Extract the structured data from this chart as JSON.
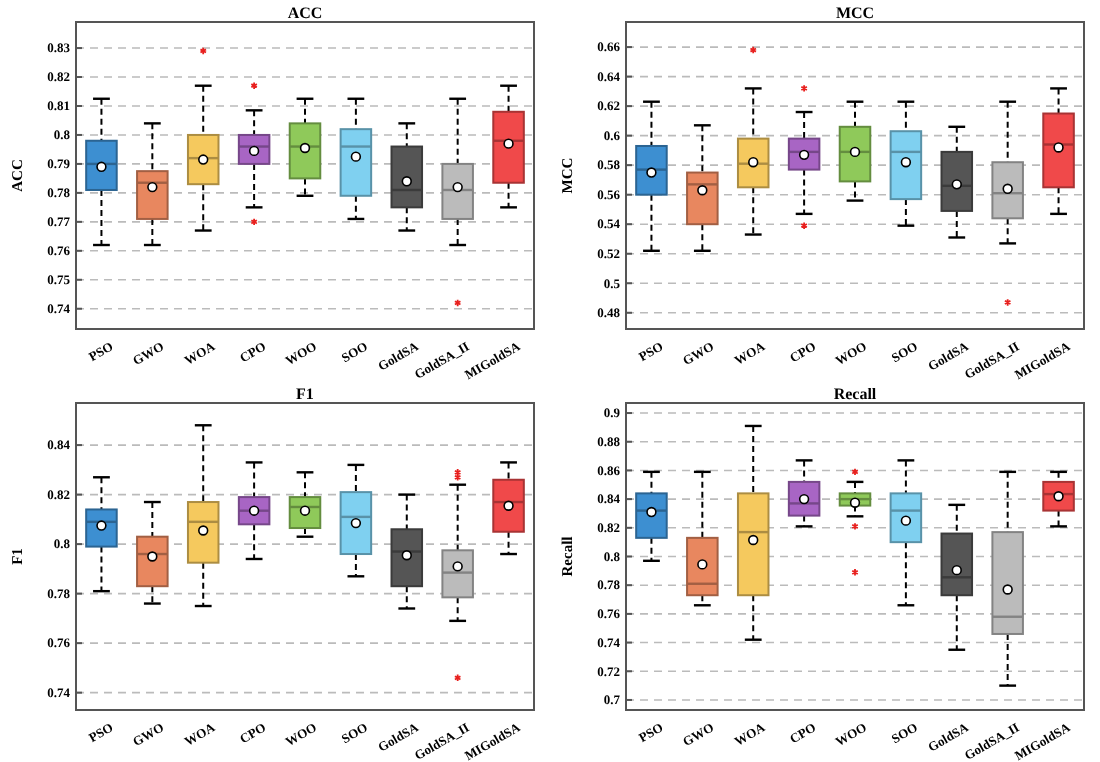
{
  "chart_data": [
    {
      "type": "box",
      "title": "ACC",
      "ylabel": "ACC",
      "categories": [
        "PSO",
        "GWO",
        "WOA",
        "CPO",
        "WOO",
        "SOO",
        "GoldSA",
        "GoldSA_II",
        "MIGoldSA"
      ],
      "colors": [
        "#3d8fd1",
        "#e8875f",
        "#f5c95e",
        "#a865c4",
        "#8fc95a",
        "#7fd0f0",
        "#555555",
        "#bbbbbb",
        "#f0494a"
      ],
      "ylim": [
        0.733,
        0.839
      ],
      "yticks": [
        0.74,
        0.75,
        0.76,
        0.77,
        0.78,
        0.79,
        0.8,
        0.81,
        0.82,
        0.83
      ],
      "grid": "y",
      "boxes": [
        {
          "low": 0.762,
          "q1": 0.781,
          "median": 0.79,
          "q3": 0.798,
          "high": 0.8125,
          "mean": 0.789
        },
        {
          "low": 0.762,
          "q1": 0.771,
          "median": 0.7835,
          "q3": 0.7875,
          "high": 0.804,
          "mean": 0.782
        },
        {
          "low": 0.767,
          "q1": 0.783,
          "median": 0.792,
          "q3": 0.8,
          "high": 0.817,
          "mean": 0.7915,
          "outliers": [
            0.829
          ]
        },
        {
          "low": 0.775,
          "q1": 0.79,
          "median": 0.796,
          "q3": 0.8,
          "high": 0.8085,
          "mean": 0.7945,
          "outliers": [
            0.817,
            0.77
          ]
        },
        {
          "low": 0.779,
          "q1": 0.785,
          "median": 0.796,
          "q3": 0.804,
          "high": 0.8125,
          "mean": 0.7955
        },
        {
          "low": 0.771,
          "q1": 0.779,
          "median": 0.796,
          "q3": 0.802,
          "high": 0.8125,
          "mean": 0.7925
        },
        {
          "low": 0.767,
          "q1": 0.775,
          "median": 0.781,
          "q3": 0.796,
          "high": 0.804,
          "mean": 0.784
        },
        {
          "low": 0.762,
          "q1": 0.771,
          "median": 0.781,
          "q3": 0.79,
          "high": 0.8125,
          "mean": 0.782,
          "outliers": [
            0.742
          ]
        },
        {
          "low": 0.775,
          "q1": 0.7835,
          "median": 0.798,
          "q3": 0.808,
          "high": 0.817,
          "mean": 0.797
        }
      ]
    },
    {
      "type": "box",
      "title": "MCC",
      "ylabel": "MCC",
      "categories": [
        "PSO",
        "GWO",
        "WOA",
        "CPO",
        "WOO",
        "SOO",
        "GoldSA",
        "GoldSA_II",
        "MIGoldSA"
      ],
      "colors": [
        "#3d8fd1",
        "#e8875f",
        "#f5c95e",
        "#a865c4",
        "#8fc95a",
        "#7fd0f0",
        "#555555",
        "#bbbbbb",
        "#f0494a"
      ],
      "ylim": [
        0.469,
        0.677
      ],
      "yticks": [
        0.48,
        0.5,
        0.52,
        0.54,
        0.56,
        0.58,
        0.6,
        0.62,
        0.64,
        0.66
      ],
      "grid": "y",
      "boxes": [
        {
          "low": 0.522,
          "q1": 0.56,
          "median": 0.577,
          "q3": 0.593,
          "high": 0.623,
          "mean": 0.575
        },
        {
          "low": 0.522,
          "q1": 0.54,
          "median": 0.567,
          "q3": 0.575,
          "high": 0.607,
          "mean": 0.563
        },
        {
          "low": 0.533,
          "q1": 0.565,
          "median": 0.581,
          "q3": 0.598,
          "high": 0.632,
          "mean": 0.582,
          "outliers": [
            0.658
          ]
        },
        {
          "low": 0.547,
          "q1": 0.577,
          "median": 0.589,
          "q3": 0.598,
          "high": 0.616,
          "mean": 0.587,
          "outliers": [
            0.632,
            0.539
          ]
        },
        {
          "low": 0.556,
          "q1": 0.569,
          "median": 0.589,
          "q3": 0.606,
          "high": 0.623,
          "mean": 0.589
        },
        {
          "low": 0.539,
          "q1": 0.557,
          "median": 0.589,
          "q3": 0.603,
          "high": 0.623,
          "mean": 0.582
        },
        {
          "low": 0.531,
          "q1": 0.549,
          "median": 0.566,
          "q3": 0.589,
          "high": 0.606,
          "mean": 0.567
        },
        {
          "low": 0.527,
          "q1": 0.544,
          "median": 0.561,
          "q3": 0.582,
          "high": 0.623,
          "mean": 0.564,
          "outliers": [
            0.487
          ]
        },
        {
          "low": 0.547,
          "q1": 0.565,
          "median": 0.594,
          "q3": 0.615,
          "high": 0.632,
          "mean": 0.592
        }
      ]
    },
    {
      "type": "box",
      "title": "F1",
      "ylabel": "F1",
      "categories": [
        "PSO",
        "GWO",
        "WOA",
        "CPO",
        "WOO",
        "SOO",
        "GoldSA",
        "GoldSA_II",
        "MIGoldSA"
      ],
      "colors": [
        "#3d8fd1",
        "#e8875f",
        "#f5c95e",
        "#a865c4",
        "#8fc95a",
        "#7fd0f0",
        "#555555",
        "#bbbbbb",
        "#f0494a"
      ],
      "ylim": [
        0.733,
        0.857
      ],
      "yticks": [
        0.74,
        0.76,
        0.78,
        0.8,
        0.82,
        0.84
      ],
      "grid": "y",
      "boxes": [
        {
          "low": 0.781,
          "q1": 0.799,
          "median": 0.809,
          "q3": 0.814,
          "high": 0.827,
          "mean": 0.8075
        },
        {
          "low": 0.776,
          "q1": 0.783,
          "median": 0.796,
          "q3": 0.803,
          "high": 0.817,
          "mean": 0.795
        },
        {
          "low": 0.775,
          "q1": 0.7925,
          "median": 0.809,
          "q3": 0.817,
          "high": 0.848,
          "mean": 0.8055
        },
        {
          "low": 0.794,
          "q1": 0.808,
          "median": 0.8135,
          "q3": 0.819,
          "high": 0.833,
          "mean": 0.8135
        },
        {
          "low": 0.803,
          "q1": 0.8065,
          "median": 0.815,
          "q3": 0.819,
          "high": 0.829,
          "mean": 0.8135
        },
        {
          "low": 0.787,
          "q1": 0.796,
          "median": 0.811,
          "q3": 0.821,
          "high": 0.832,
          "mean": 0.8085
        },
        {
          "low": 0.774,
          "q1": 0.783,
          "median": 0.797,
          "q3": 0.806,
          "high": 0.82,
          "mean": 0.7955
        },
        {
          "low": 0.769,
          "q1": 0.7785,
          "median": 0.7885,
          "q3": 0.7975,
          "high": 0.824,
          "mean": 0.791,
          "outliers": [
            0.829,
            0.827,
            0.746
          ]
        },
        {
          "low": 0.796,
          "q1": 0.805,
          "median": 0.817,
          "q3": 0.826,
          "high": 0.833,
          "mean": 0.8155
        }
      ]
    },
    {
      "type": "box",
      "title": "Recall",
      "ylabel": "Recall",
      "categories": [
        "PSO",
        "GWO",
        "WOA",
        "CPO",
        "WOO",
        "SOO",
        "GoldSA",
        "GoldSA_II",
        "MIGoldSA"
      ],
      "colors": [
        "#3d8fd1",
        "#e8875f",
        "#f5c95e",
        "#a865c4",
        "#8fc95a",
        "#7fd0f0",
        "#555555",
        "#bbbbbb",
        "#f0494a"
      ],
      "ylim": [
        0.693,
        0.907
      ],
      "yticks": [
        0.7,
        0.72,
        0.74,
        0.76,
        0.78,
        0.8,
        0.82,
        0.84,
        0.86,
        0.88,
        0.9
      ],
      "grid": "y",
      "boxes": [
        {
          "low": 0.797,
          "q1": 0.813,
          "median": 0.832,
          "q3": 0.844,
          "high": 0.859,
          "mean": 0.831
        },
        {
          "low": 0.766,
          "q1": 0.773,
          "median": 0.781,
          "q3": 0.813,
          "high": 0.859,
          "mean": 0.7945
        },
        {
          "low": 0.742,
          "q1": 0.773,
          "median": 0.817,
          "q3": 0.844,
          "high": 0.891,
          "mean": 0.8115
        },
        {
          "low": 0.821,
          "q1": 0.8285,
          "median": 0.837,
          "q3": 0.852,
          "high": 0.867,
          "mean": 0.84
        },
        {
          "low": 0.828,
          "q1": 0.8355,
          "median": 0.84,
          "q3": 0.844,
          "high": 0.852,
          "mean": 0.8375,
          "outliers": [
            0.859,
            0.821,
            0.789
          ]
        },
        {
          "low": 0.766,
          "q1": 0.81,
          "median": 0.832,
          "q3": 0.844,
          "high": 0.867,
          "mean": 0.825
        },
        {
          "low": 0.735,
          "q1": 0.773,
          "median": 0.7855,
          "q3": 0.816,
          "high": 0.836,
          "mean": 0.7905
        },
        {
          "low": 0.71,
          "q1": 0.746,
          "median": 0.758,
          "q3": 0.817,
          "high": 0.859,
          "mean": 0.777
        },
        {
          "low": 0.821,
          "q1": 0.832,
          "median": 0.8435,
          "q3": 0.852,
          "high": 0.859,
          "mean": 0.842
        }
      ]
    }
  ]
}
